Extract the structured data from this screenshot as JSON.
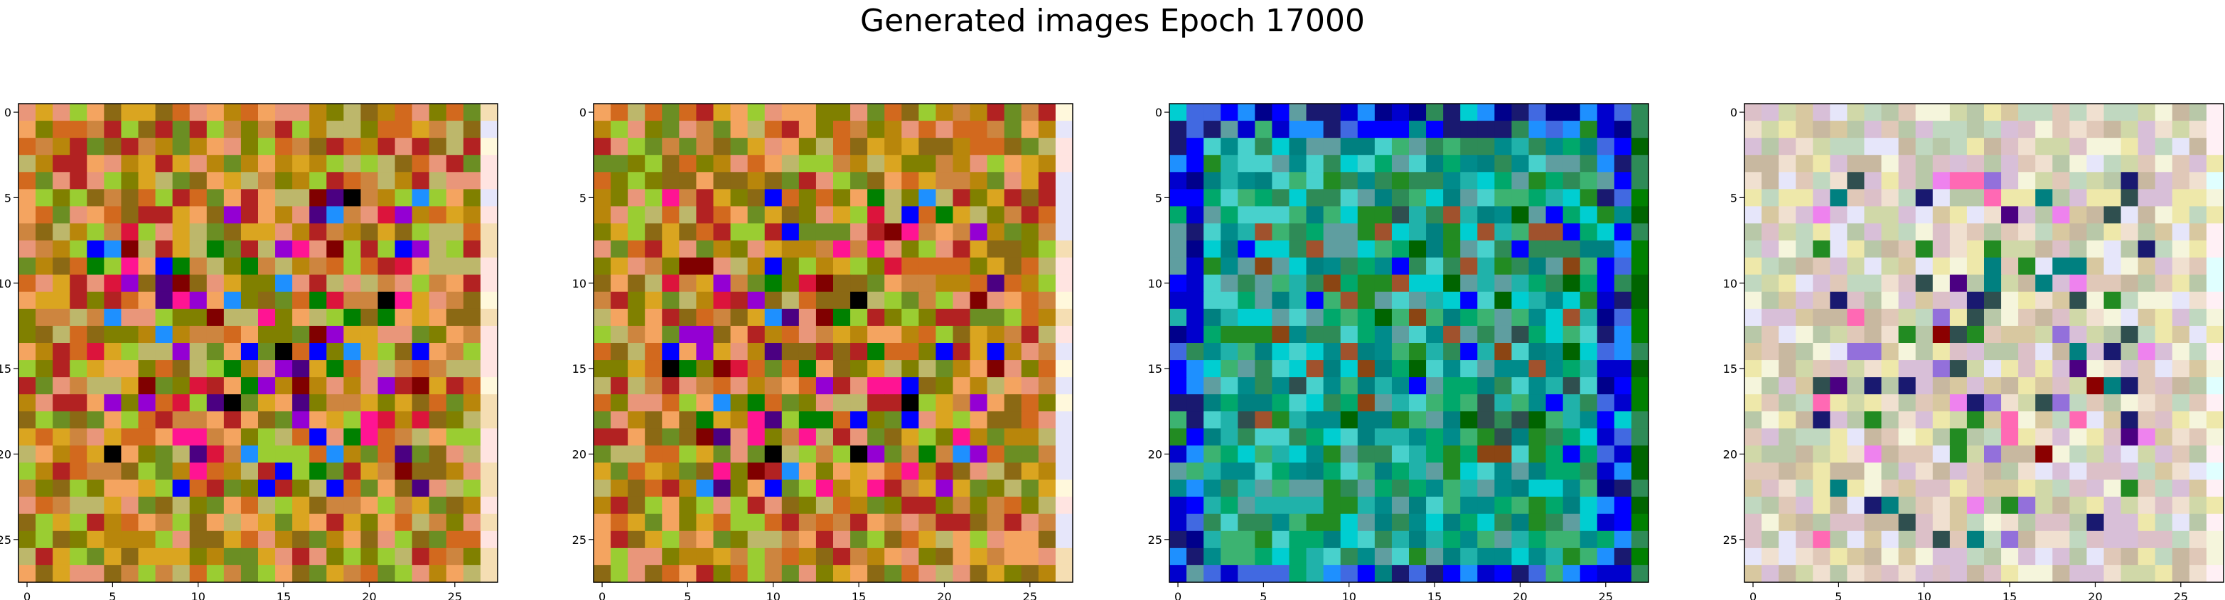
{
  "figure": {
    "suptitle": "Generated images Epoch 17000"
  },
  "chart_data": [
    {
      "type": "heatmap",
      "description": "Generated RGB image panel 1 (28x28 pixels), warm yellow/orange noise with purple/blue/red accents in center rows",
      "palette": [
        "#b8860b",
        "#cd853f",
        "#daa520",
        "#8b6914",
        "#9acd32",
        "#d2691e",
        "#6b8e23",
        "#b22222",
        "#e9967a",
        "#f4a460",
        "#808000",
        "#bdb76b"
      ],
      "accents": [
        "#0000ff",
        "#4b0082",
        "#ff1493",
        "#9400d3",
        "#800000",
        "#000000",
        "#008000",
        "#1e90ff",
        "#dc143c"
      ],
      "accent_rows": [
        5,
        22
      ],
      "edge_column_colors": [
        "#f5deb3",
        "#ffe4e1",
        "#fff8dc",
        "#e6e6fa"
      ],
      "xticks": [
        0,
        5,
        10,
        15,
        20,
        25
      ],
      "yticks": [
        0,
        5,
        10,
        15,
        20,
        25
      ],
      "xlim": [
        -0.5,
        27.5
      ],
      "ylim": [
        27.5,
        -0.5
      ]
    },
    {
      "type": "heatmap",
      "description": "Generated RGB image panel 2 (28x28 pixels), nearly identical to panel 1",
      "palette": [
        "#b8860b",
        "#cd853f",
        "#daa520",
        "#8b6914",
        "#9acd32",
        "#d2691e",
        "#6b8e23",
        "#b22222",
        "#e9967a",
        "#f4a460",
        "#808000",
        "#bdb76b"
      ],
      "accents": [
        "#0000ff",
        "#4b0082",
        "#ff1493",
        "#9400d3",
        "#800000",
        "#000000",
        "#008000",
        "#1e90ff",
        "#dc143c"
      ],
      "accent_rows": [
        5,
        22
      ],
      "edge_column_colors": [
        "#f5deb3",
        "#ffe4e1",
        "#fff8dc",
        "#e6e6fa"
      ],
      "xticks": [
        0,
        5,
        10,
        15,
        20,
        25
      ],
      "yticks": [
        0,
        5,
        10,
        15,
        20,
        25
      ],
      "xlim": [
        -0.5,
        27.5
      ],
      "ylim": [
        27.5,
        -0.5
      ]
    },
    {
      "type": "heatmap",
      "description": "Generated RGB image panel 3 (28x28 pixels), blue border with teal/green interior",
      "palette": [
        "#008b8b",
        "#20b2aa",
        "#2e8b57",
        "#008080",
        "#3cb371",
        "#00a86b",
        "#5f9ea0",
        "#00ced1",
        "#228b22",
        "#48d1cc"
      ],
      "border_palette": [
        "#0000cd",
        "#0000ff",
        "#1e90ff",
        "#4169e1",
        "#191970",
        "#00008b"
      ],
      "accents": [
        "#8b4513",
        "#a0522d",
        "#006400",
        "#2f4f4f",
        "#0000ff"
      ],
      "accent_rows": [
        6,
        20
      ],
      "edge_column_colors": [
        "#008000",
        "#006400",
        "#2e8b57"
      ],
      "xticks": [
        0,
        5,
        10,
        15,
        20,
        25
      ],
      "yticks": [
        0,
        5,
        10,
        15,
        20,
        25
      ],
      "xlim": [
        -0.5,
        27.5
      ],
      "ylim": [
        27.5,
        -0.5
      ]
    },
    {
      "type": "heatmap",
      "description": "Generated RGB image panel 4 (28x28 pixels), pale pastel noise with olive/yellow tints and dark accents",
      "palette": [
        "#d8bfd8",
        "#eee8aa",
        "#c0d8c0",
        "#e0c8b8",
        "#d0d8a8",
        "#f0e0d0",
        "#c8b8a0",
        "#e6e6fa",
        "#d8c8a0",
        "#b8c8a8",
        "#f5f5dc",
        "#dcc0c8"
      ],
      "accents": [
        "#4b0082",
        "#2f4f4f",
        "#9370db",
        "#ff69b4",
        "#008080",
        "#8b0000",
        "#191970",
        "#ee82ee",
        "#228b22"
      ],
      "accent_rows": [
        4,
        25
      ],
      "edge_column_colors": [
        "#f5f5dc",
        "#e0ffff",
        "#fff0f5",
        "#eee8aa"
      ],
      "xticks": [
        0,
        5,
        10,
        15,
        20,
        25
      ],
      "yticks": [
        0,
        5,
        10,
        15,
        20,
        25
      ],
      "xlim": [
        -0.5,
        27.5
      ],
      "ylim": [
        27.5,
        -0.5
      ]
    }
  ]
}
